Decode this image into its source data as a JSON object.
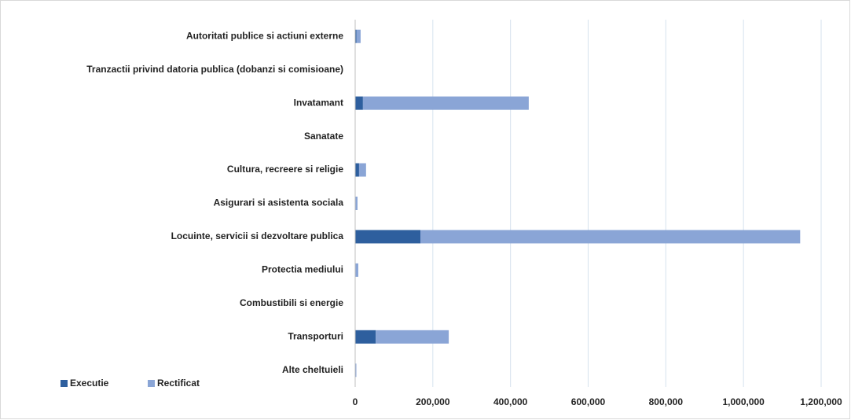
{
  "chart_data": {
    "type": "stacked_barh",
    "categories": [
      "Autoritati publice si actiuni externe",
      "Tranzactii privind datoria publica (dobanzi si comisioane)",
      "Invatamant",
      "Sanatate",
      "Cultura, recreere si religie",
      "Asigurari si asistenta sociala",
      "Locuinte, servicii si dezvoltare publica",
      "Protectia mediului",
      "Combustibili si energie",
      "Transporturi",
      "Alte cheltuieli"
    ],
    "series": [
      {
        "name": "Executie",
        "color": "#2e5f9e",
        "values": [
          3000,
          0,
          20000,
          0,
          10000,
          1000,
          168000,
          1000,
          0,
          53000,
          500
        ]
      },
      {
        "name": "Rectificat",
        "color": "#8aa5d6",
        "values": [
          11000,
          1000,
          427000,
          0,
          18000,
          5000,
          978000,
          7000,
          1000,
          188000,
          2500
        ]
      }
    ],
    "xlim": [
      0,
      1200000
    ],
    "xticks": [
      0,
      {
        "value": 200000,
        "label": "200,000"
      },
      {
        "value": 400000,
        "label": "400,000"
      },
      {
        "value": 600000,
        "label": "600,000"
      },
      {
        "value": 800000,
        "label": "800,000"
      },
      {
        "value": 1000000,
        "label": "1,000,000"
      },
      {
        "value": 1200000,
        "label": "1,200,000"
      }
    ],
    "grid": true,
    "legend": "bottom-left"
  }
}
